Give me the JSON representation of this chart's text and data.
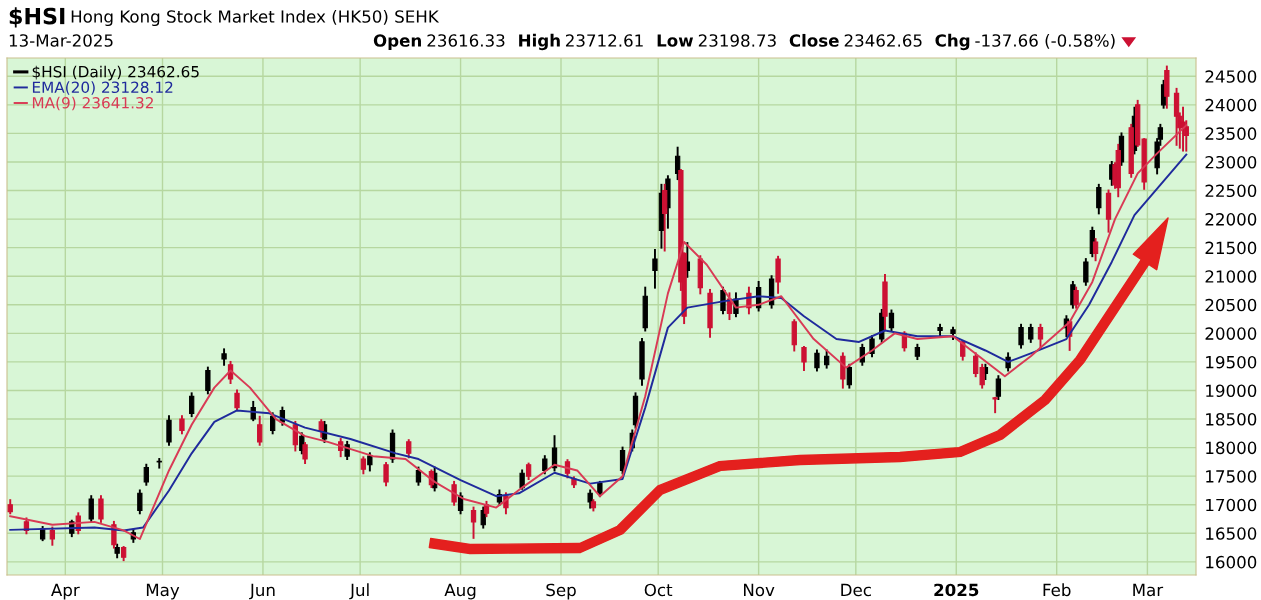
{
  "chart_data": {
    "type": "candlestick",
    "title": "$HSI Hong Kong Stock Market Index (HK50) SEHK",
    "subtitle": "13-Mar-2025",
    "annotations": [
      "Open 23616.33",
      "High 23712.61",
      "Low 23198.73",
      "Close 23462.65",
      "Chg -137.66 (-0.58%)"
    ],
    "xlim": [
      "2024-03-14",
      "2025-03-16"
    ],
    "xticks": [
      {
        "value": "2024-04-01",
        "label": "Apr"
      },
      {
        "value": "2024-05-01",
        "label": "May"
      },
      {
        "value": "2024-06-01",
        "label": "Jun"
      },
      {
        "value": "2024-07-01",
        "label": "Jul"
      },
      {
        "value": "2024-08-01",
        "label": "Aug"
      },
      {
        "value": "2024-09-01",
        "label": "Sep"
      },
      {
        "value": "2024-10-01",
        "label": "Oct"
      },
      {
        "value": "2024-11-01",
        "label": "Nov"
      },
      {
        "value": "2024-12-01",
        "label": "Dec"
      },
      {
        "value": "2025-01-01",
        "label": "2025"
      },
      {
        "value": "2025-02-01",
        "label": "Feb"
      },
      {
        "value": "2025-03-01",
        "label": "Mar"
      }
    ],
    "ylim": [
      15770,
      24820
    ],
    "yticks": [
      16000,
      16500,
      17000,
      17500,
      18000,
      18500,
      19000,
      19500,
      20000,
      20500,
      21000,
      21500,
      22000,
      22500,
      23000,
      23500,
      24000,
      24500
    ],
    "grid": true,
    "legend": "top left",
    "series": [
      {
        "name": "$HSI (Daily) 23462.65",
        "type": "candlestick",
        "color": "#000000",
        "x": [
          "2024-03-25",
          "2024-04-03",
          "2024-04-09",
          "2024-04-17",
          "2024-04-22",
          "2024-04-24",
          "2024-04-26",
          "2024-04-30",
          "2024-05-03",
          "2024-05-10",
          "2024-05-15",
          "2024-05-20",
          "2024-05-29",
          "2024-06-04",
          "2024-06-07",
          "2024-06-13",
          "2024-06-20",
          "2024-06-27",
          "2024-07-04",
          "2024-07-11",
          "2024-07-19",
          "2024-07-24",
          "2024-08-01",
          "2024-08-08",
          "2024-08-13",
          "2024-08-20",
          "2024-08-27",
          "2024-08-30",
          "2024-09-10",
          "2024-09-13",
          "2024-09-20",
          "2024-09-23",
          "2024-09-24",
          "2024-09-26",
          "2024-09-27",
          "2024-09-30",
          "2024-10-02",
          "2024-10-04",
          "2024-10-07",
          "2024-10-10",
          "2024-10-21",
          "2024-10-25",
          "2024-11-01",
          "2024-11-05",
          "2024-11-19",
          "2024-11-22",
          "2024-11-29",
          "2024-12-03",
          "2024-12-06",
          "2024-12-09",
          "2024-12-12",
          "2024-12-20",
          "2024-12-27",
          "2024-12-31",
          "2025-01-10",
          "2025-01-14",
          "2025-01-17",
          "2025-01-21",
          "2025-01-24",
          "2025-02-04",
          "2025-02-06",
          "2025-02-10",
          "2025-02-12",
          "2025-02-14",
          "2025-02-18",
          "2025-02-21",
          "2025-02-25",
          "2025-03-04",
          "2025-03-05",
          "2025-03-06"
        ],
        "ohlc": [
          [
            16400,
            16610,
            16380,
            16580
          ],
          [
            16500,
            16720,
            16450,
            16700
          ],
          [
            16750,
            17150,
            16700,
            17100
          ],
          [
            16150,
            16300,
            16080,
            16250
          ],
          [
            16400,
            16560,
            16350,
            16510
          ],
          [
            16900,
            17250,
            16850,
            17200
          ],
          [
            17400,
            17700,
            17350,
            17650
          ],
          [
            17750,
            17800,
            17650,
            17760
          ],
          [
            18100,
            18550,
            18050,
            18480
          ],
          [
            18600,
            18950,
            18550,
            18900
          ],
          [
            19000,
            19400,
            18950,
            19350
          ],
          [
            19550,
            19720,
            19450,
            19640
          ],
          [
            18500,
            18800,
            18480,
            18700
          ],
          [
            18300,
            18600,
            18250,
            18550
          ],
          [
            18450,
            18700,
            18400,
            18650
          ],
          [
            17950,
            18250,
            17900,
            18200
          ],
          [
            18150,
            18450,
            18100,
            18400
          ],
          [
            17850,
            18100,
            17800,
            18050
          ],
          [
            17700,
            17900,
            17600,
            17850
          ],
          [
            17800,
            18300,
            17750,
            18250
          ],
          [
            17400,
            17650,
            17350,
            17600
          ],
          [
            17300,
            17650,
            17250,
            17550
          ],
          [
            16900,
            17200,
            16850,
            17150
          ],
          [
            16650,
            16950,
            16600,
            16900
          ],
          [
            17050,
            17250,
            17000,
            17180
          ],
          [
            17300,
            17600,
            17280,
            17550
          ],
          [
            17600,
            17850,
            17550,
            17800
          ],
          [
            17650,
            18200,
            17600,
            17990
          ],
          [
            17050,
            17250,
            16950,
            17200
          ],
          [
            17200,
            17400,
            17150,
            17370
          ],
          [
            17600,
            18000,
            17550,
            17950
          ],
          [
            18000,
            18300,
            17950,
            18250
          ],
          [
            18400,
            18950,
            18350,
            18900
          ],
          [
            19200,
            19900,
            19100,
            19850
          ],
          [
            20100,
            20800,
            20050,
            20650
          ],
          [
            21100,
            21460,
            20800,
            21300
          ],
          [
            21800,
            22600,
            21500,
            22450
          ],
          [
            22200,
            22750,
            21850,
            22700
          ],
          [
            22800,
            23250,
            22700,
            23100
          ],
          [
            21100,
            21580,
            20990,
            21250
          ],
          [
            20400,
            20800,
            20350,
            20750
          ],
          [
            20350,
            20700,
            20300,
            20600
          ],
          [
            20450,
            20900,
            20400,
            20800
          ],
          [
            20500,
            21000,
            20450,
            20950
          ],
          [
            19400,
            19700,
            19350,
            19650
          ],
          [
            19450,
            19700,
            19400,
            19600
          ],
          [
            19100,
            19450,
            19050,
            19400
          ],
          [
            19500,
            19800,
            19450,
            19750
          ],
          [
            19650,
            19950,
            19600,
            19900
          ],
          [
            19900,
            20410,
            19850,
            20350
          ],
          [
            20100,
            20400,
            20050,
            20350
          ],
          [
            19600,
            19800,
            19550,
            19750
          ],
          [
            20050,
            20150,
            19950,
            20100
          ],
          [
            20000,
            20100,
            19900,
            20060
          ],
          [
            19300,
            19450,
            19200,
            19400
          ],
          [
            18900,
            19250,
            18850,
            19200
          ],
          [
            19400,
            19650,
            19350,
            19580
          ],
          [
            19800,
            20150,
            19750,
            20100
          ],
          [
            19900,
            20150,
            19850,
            20100
          ],
          [
            20100,
            20300,
            19950,
            20250
          ],
          [
            20500,
            20900,
            20450,
            20850
          ],
          [
            20900,
            21300,
            20850,
            21250
          ],
          [
            21400,
            21850,
            21350,
            21800
          ],
          [
            22200,
            22600,
            22100,
            22550
          ],
          [
            22700,
            23000,
            22600,
            22950
          ],
          [
            23000,
            23500,
            22950,
            23450
          ],
          [
            23200,
            23950,
            23150,
            23800
          ],
          [
            22900,
            23400,
            22800,
            23350
          ],
          [
            23400,
            23650,
            23300,
            23600
          ],
          [
            24000,
            24420,
            23950,
            24350
          ]
        ]
      },
      {
        "type": "candlestick",
        "color": "#cc1133",
        "x": [
          "2024-03-15",
          "2024-03-20",
          "2024-03-28",
          "2024-04-05",
          "2024-04-12",
          "2024-04-16",
          "2024-04-19",
          "2024-05-07",
          "2024-05-22",
          "2024-05-24",
          "2024-05-31",
          "2024-06-11",
          "2024-06-14",
          "2024-06-19",
          "2024-06-25",
          "2024-07-02",
          "2024-07-09",
          "2024-07-16",
          "2024-07-23",
          "2024-07-30",
          "2024-08-05",
          "2024-08-09",
          "2024-08-15",
          "2024-08-22",
          "2024-09-03",
          "2024-09-05",
          "2024-09-11",
          "2024-10-03",
          "2024-10-08",
          "2024-10-09",
          "2024-10-14",
          "2024-10-17",
          "2024-10-23",
          "2024-10-29",
          "2024-11-07",
          "2024-11-12",
          "2024-11-15",
          "2024-11-27",
          "2024-12-10",
          "2024-12-16",
          "2025-01-03",
          "2025-01-07",
          "2025-01-09",
          "2025-01-13",
          "2025-01-27",
          "2025-02-05",
          "2025-02-07",
          "2025-02-13",
          "2025-02-17",
          "2025-02-19",
          "2025-02-20",
          "2025-02-24",
          "2025-02-26",
          "2025-02-28",
          "2025-03-07",
          "2025-03-10",
          "2025-03-11",
          "2025-03-12",
          "2025-03-13"
        ],
        "ohlc": [
          [
            17000,
            17080,
            16850,
            16880
          ],
          [
            16700,
            16760,
            16500,
            16550
          ],
          [
            16550,
            16600,
            16300,
            16400
          ],
          [
            16800,
            16850,
            16500,
            16550
          ],
          [
            17100,
            17150,
            16700,
            16750
          ],
          [
            16650,
            16700,
            16250,
            16300
          ],
          [
            16250,
            16260,
            16030,
            16080
          ],
          [
            18500,
            18550,
            18250,
            18300
          ],
          [
            19450,
            19500,
            19130,
            19200
          ],
          [
            18950,
            19000,
            18660,
            18700
          ],
          [
            18400,
            18540,
            18050,
            18100
          ],
          [
            18400,
            18450,
            17950,
            18050
          ],
          [
            18050,
            18080,
            17730,
            17800
          ],
          [
            18450,
            18480,
            18190,
            18300
          ],
          [
            18100,
            18150,
            17850,
            17950
          ],
          [
            17800,
            17830,
            17550,
            17620
          ],
          [
            17700,
            17730,
            17340,
            17400
          ],
          [
            18100,
            18130,
            17830,
            17900
          ],
          [
            17580,
            17600,
            17310,
            17350
          ],
          [
            17350,
            17400,
            17000,
            17050
          ],
          [
            16900,
            16950,
            16420,
            16700
          ],
          [
            17000,
            17050,
            16800,
            16850
          ],
          [
            17150,
            17200,
            16850,
            16950
          ],
          [
            17700,
            17720,
            17450,
            17500
          ],
          [
            17750,
            17780,
            17480,
            17550
          ],
          [
            17450,
            17480,
            17310,
            17350
          ],
          [
            17050,
            17080,
            16900,
            16950
          ],
          [
            22500,
            22600,
            21450,
            22100
          ],
          [
            22850,
            22860,
            20760,
            20900
          ],
          [
            21400,
            21400,
            20180,
            20300
          ],
          [
            21300,
            21350,
            20700,
            20800
          ],
          [
            20700,
            20760,
            19940,
            20100
          ],
          [
            20600,
            20700,
            20250,
            20350
          ],
          [
            20700,
            20800,
            20350,
            20450
          ],
          [
            21300,
            21340,
            20710,
            20900
          ],
          [
            20200,
            20230,
            19700,
            19800
          ],
          [
            19750,
            19760,
            19360,
            19500
          ],
          [
            19600,
            19650,
            19050,
            19200
          ],
          [
            20900,
            21020,
            20060,
            20300
          ],
          [
            20000,
            20020,
            19700,
            19750
          ],
          [
            19850,
            19850,
            19540,
            19600
          ],
          [
            19600,
            19650,
            19250,
            19300
          ],
          [
            19400,
            19450,
            19050,
            19100
          ],
          [
            18870,
            18870,
            18620,
            18850
          ],
          [
            20100,
            20150,
            19730,
            19900
          ],
          [
            20200,
            20200,
            19710,
            19950
          ],
          [
            20750,
            20800,
            20450,
            20500
          ],
          [
            21600,
            21650,
            21280,
            21400
          ],
          [
            22450,
            22500,
            21780,
            22000
          ],
          [
            22950,
            22980,
            22550,
            22600
          ],
          [
            23200,
            23300,
            22400,
            22550
          ],
          [
            23600,
            23650,
            22740,
            22800
          ],
          [
            24000,
            24070,
            23280,
            23300
          ],
          [
            23400,
            23400,
            22530,
            22650
          ],
          [
            24600,
            24670,
            23950,
            24150
          ],
          [
            24200,
            24280,
            23300,
            23800
          ],
          [
            23800,
            23850,
            23250,
            23600
          ],
          [
            23700,
            23950,
            23200,
            23600
          ],
          [
            23616.33,
            23712.61,
            23198.73,
            23462.65
          ]
        ]
      },
      {
        "name": "EMA(20) 23128.12",
        "type": "line",
        "color": "#1f2a9c",
        "x": [
          "2024-03-15",
          "2024-04-10",
          "2024-04-19",
          "2024-04-25",
          "2024-05-03",
          "2024-05-10",
          "2024-05-17",
          "2024-05-24",
          "2024-06-03",
          "2024-06-14",
          "2024-06-28",
          "2024-07-12",
          "2024-07-19",
          "2024-08-01",
          "2024-08-12",
          "2024-08-19",
          "2024-08-30",
          "2024-09-10",
          "2024-09-20",
          "2024-09-27",
          "2024-10-04",
          "2024-10-10",
          "2024-10-21",
          "2024-11-01",
          "2024-11-08",
          "2024-11-15",
          "2024-11-25",
          "2024-12-02",
          "2024-12-10",
          "2024-12-20",
          "2024-12-31",
          "2025-01-10",
          "2025-01-17",
          "2025-01-24",
          "2025-02-04",
          "2025-02-11",
          "2025-02-18",
          "2025-02-25",
          "2025-03-05",
          "2025-03-13"
        ],
        "values": [
          16560,
          16600,
          16550,
          16600,
          17250,
          17900,
          18450,
          18650,
          18600,
          18350,
          18150,
          17900,
          17800,
          17430,
          17150,
          17200,
          17560,
          17370,
          17450,
          18700,
          20100,
          20450,
          20560,
          20650,
          20620,
          20300,
          19900,
          19850,
          20050,
          19950,
          19950,
          19700,
          19500,
          19650,
          19900,
          20500,
          21250,
          22070,
          22600,
          23128.12
        ]
      },
      {
        "name": "MA(9) 23641.32",
        "type": "line",
        "color": "#d93a55",
        "x": [
          "2024-03-15",
          "2024-03-28",
          "2024-04-10",
          "2024-04-19",
          "2024-04-24",
          "2024-05-03",
          "2024-05-10",
          "2024-05-17",
          "2024-05-22",
          "2024-05-28",
          "2024-06-05",
          "2024-06-14",
          "2024-06-21",
          "2024-07-05",
          "2024-07-15",
          "2024-07-24",
          "2024-08-02",
          "2024-08-12",
          "2024-08-20",
          "2024-08-30",
          "2024-09-06",
          "2024-09-13",
          "2024-09-20",
          "2024-09-27",
          "2024-10-04",
          "2024-10-09",
          "2024-10-16",
          "2024-10-25",
          "2024-11-01",
          "2024-11-08",
          "2024-11-18",
          "2024-11-28",
          "2024-12-06",
          "2024-12-13",
          "2024-12-20",
          "2024-12-31",
          "2025-01-08",
          "2025-01-16",
          "2025-01-24",
          "2025-02-05",
          "2025-02-12",
          "2025-02-19",
          "2025-02-26",
          "2025-03-04",
          "2025-03-13"
        ],
        "values": [
          16800,
          16650,
          16700,
          16550,
          16400,
          17600,
          18400,
          19050,
          19350,
          19050,
          18500,
          18200,
          18100,
          17850,
          17800,
          17400,
          17100,
          16950,
          17300,
          17700,
          17600,
          17150,
          17500,
          18900,
          20700,
          21600,
          21200,
          20450,
          20500,
          20650,
          19900,
          19400,
          19700,
          20000,
          19900,
          19950,
          19600,
          19250,
          19600,
          20200,
          20900,
          22000,
          22800,
          23150,
          23641.32
        ]
      }
    ]
  }
}
